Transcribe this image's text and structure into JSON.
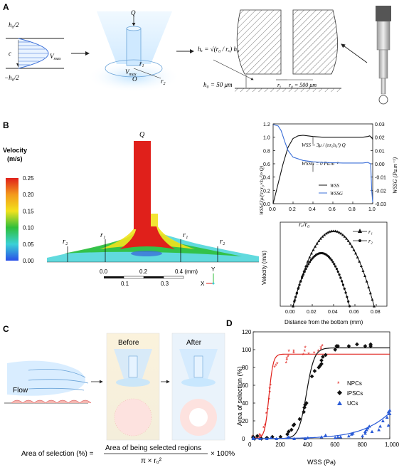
{
  "panels": {
    "a": "A",
    "b": "B",
    "c": "C",
    "d": "D"
  },
  "panel_a": {
    "profile": {
      "h0_half_top": "h₀/2",
      "h0_half_bot": "−h₀/2",
      "c": "c",
      "vmax": "V",
      "vmax_sub": "max"
    },
    "funnel": {
      "q": "Q",
      "r1": "r",
      "r1_sub": "1",
      "r2": "r",
      "r2_sub": "2",
      "vmax": "V",
      "vmax_sub": "max",
      "o": "O"
    },
    "geometry": {
      "hx_eq": "hₓ = √(r₀ / rₓ) h₀",
      "h0_eq": "h₀ = 50 μm",
      "rx": "rₓ",
      "r0_eq": "r₀ = 500 μm"
    }
  },
  "panel_b": {
    "legend": {
      "title_1": "Velocity",
      "title_2": "(m/s)",
      "ticks": [
        "0.25",
        "0.20",
        "0.15",
        "0.10",
        "0.05",
        "0.00"
      ]
    },
    "flow": {
      "q": "Q",
      "r2_left": "r₂",
      "r1_left": "r₁",
      "r1_right": "r₁",
      "r2_right": "r₂"
    },
    "scalebar": {
      "top_ticks": [
        "0.0",
        "0.2",
        "0.4 (mm)"
      ],
      "bottom_ticks": [
        "0.1",
        "0.3"
      ]
    },
    "axes_icon": {
      "x": "X",
      "y": "Y"
    }
  },
  "panel_c": {
    "before": "Before",
    "after": "After",
    "flow": "Flow",
    "formula": {
      "lhs": "Area of selection (%) =",
      "numer": "Area of being selected regions",
      "denom": "π × r₀²",
      "tail": "× 100%"
    }
  },
  "chart_data": [
    {
      "type": "line",
      "xlabel": "rₓ/r₀",
      "ylabel_left": "WSS/(3μ/(π×r₀×h₀²)×Q)",
      "ylabel_right": "WSSG (Pa.m⁻¹)",
      "xlim": [
        0,
        1
      ],
      "ylim_left": [
        0,
        1.2
      ],
      "ylim_right": [
        -0.03,
        0.03
      ],
      "x_ticks": [
        "0.0",
        "0.2",
        "0.4",
        "0.6",
        "0.8",
        "1.0"
      ],
      "y_left_ticks": [
        "0.0",
        "0.2",
        "0.4",
        "0.6",
        "0.8",
        "1.0",
        "1.2"
      ],
      "y_right_ticks": [
        "-0.03",
        "-0.02",
        "-0.01",
        "0.00",
        "0.01",
        "0.02",
        "0.03"
      ],
      "annotations": {
        "wss_eq": "WSS = 3μ / (πr₀h₀²) Q",
        "wssg_eq": "WSSG = 0 Pa.m⁻¹"
      },
      "series": [
        {
          "name": "WSS",
          "color": "#111111",
          "axis": "left",
          "x": [
            0,
            0.05,
            0.1,
            0.15,
            0.2,
            0.25,
            0.3,
            0.35,
            0.4,
            0.5,
            0.6,
            0.7,
            0.8,
            0.9,
            0.95,
            0.97,
            0.99,
            1.0
          ],
          "y": [
            0.0,
            0.3,
            0.6,
            0.85,
            0.98,
            1.02,
            1.03,
            1.02,
            1.01,
            1.0,
            1.0,
            1.0,
            1.0,
            1.0,
            1.01,
            1.02,
            0.99,
            0.97
          ]
        },
        {
          "name": "WSSG",
          "color": "#3b6fd8",
          "axis": "right",
          "x": [
            0,
            0.05,
            0.08,
            0.12,
            0.15,
            0.2,
            0.3,
            0.4,
            0.5,
            0.6,
            0.7,
            0.8,
            0.9,
            0.95,
            0.98,
            0.99,
            1.0
          ],
          "y": [
            0.0295,
            0.0285,
            0.025,
            0.016,
            0.01,
            0.005,
            0.0025,
            0.0015,
            0.001,
            0.0008,
            0.0006,
            0.0006,
            0.0006,
            0.001,
            0.0,
            -0.02,
            -0.029
          ]
        }
      ]
    },
    {
      "type": "line",
      "xlabel": "Distance from the bottom (mm)",
      "ylabel": "Velocity (m/s)",
      "xlim": [
        -0.01,
        0.09
      ],
      "ylim": [
        0,
        0.22
      ],
      "x_ticks": [
        "0.00",
        "0.02",
        "0.04",
        "0.06",
        "0.08"
      ],
      "series": [
        {
          "name": "r₁",
          "marker": "triangle",
          "peak_x": 0.04,
          "peak_y": 0.197,
          "x_start": 0.002,
          "x_end": 0.078
        },
        {
          "name": "r₂",
          "marker": "circle",
          "peak_x": 0.0285,
          "peak_y": 0.139,
          "x_start": 0.002,
          "x_end": 0.055
        }
      ]
    },
    {
      "type": "scatter",
      "xlabel": "WSS (Pa)",
      "ylabel": "Area of selection (%)",
      "xlim": [
        0,
        1000
      ],
      "ylim": [
        0,
        120
      ],
      "x_ticks": [
        "0",
        "200",
        "400",
        "600",
        "800",
        "1,000"
      ],
      "y_ticks": [
        "0",
        "20",
        "40",
        "60",
        "80",
        "100",
        "120"
      ],
      "series": [
        {
          "name": "NPCs",
          "color": "#e0201b",
          "marker": "star",
          "points": [
            [
              0,
              0
            ],
            [
              0,
              1
            ],
            [
              0,
              2
            ],
            [
              30,
              0
            ],
            [
              30,
              1
            ],
            [
              50,
              2
            ],
            [
              50,
              4
            ],
            [
              60,
              0
            ],
            [
              60,
              3
            ],
            [
              80,
              12
            ],
            [
              90,
              15
            ],
            [
              100,
              28
            ],
            [
              110,
              33
            ],
            [
              120,
              44
            ],
            [
              125,
              52
            ],
            [
              125,
              56
            ],
            [
              130,
              60
            ],
            [
              160,
              80
            ],
            [
              170,
              82
            ],
            [
              180,
              84
            ],
            [
              245,
              85
            ],
            [
              250,
              88
            ],
            [
              250,
              90
            ],
            [
              260,
              92
            ],
            [
              265,
              98
            ],
            [
              300,
              96
            ],
            [
              300,
              98
            ],
            [
              370,
              94
            ],
            [
              380,
              98
            ],
            [
              385,
              102
            ],
            [
              410,
              95
            ],
            [
              450,
              96
            ],
            [
              480,
              98
            ],
            [
              500,
              100
            ],
            [
              500,
              102
            ],
            [
              510,
              104
            ]
          ],
          "fit": {
            "ymin": 0,
            "ymax": 95,
            "x0": 115,
            "k": 0.065
          }
        },
        {
          "name": "iPSCs",
          "color": "#111111",
          "marker": "diamond",
          "points": [
            [
              0,
              1
            ],
            [
              0,
              2
            ],
            [
              10,
              0
            ],
            [
              30,
              3
            ],
            [
              60,
              0
            ],
            [
              100,
              1
            ],
            [
              140,
              2
            ],
            [
              200,
              2
            ],
            [
              250,
              5
            ],
            [
              260,
              8
            ],
            [
              280,
              10
            ],
            [
              295,
              15
            ],
            [
              300,
              16
            ],
            [
              340,
              22
            ],
            [
              370,
              30
            ],
            [
              375,
              35
            ],
            [
              380,
              38
            ],
            [
              390,
              40
            ],
            [
              430,
              70
            ],
            [
              450,
              76
            ],
            [
              480,
              80
            ],
            [
              490,
              82
            ],
            [
              500,
              84
            ],
            [
              500,
              88
            ],
            [
              510,
              92
            ],
            [
              530,
              94
            ],
            [
              600,
              100
            ],
            [
              610,
              104
            ],
            [
              620,
              104
            ],
            [
              700,
              104
            ],
            [
              760,
              106
            ],
            [
              820,
              104
            ],
            [
              860,
              104
            ],
            [
              860,
              106
            ]
          ],
          "fit": {
            "ymin": 0,
            "ymax": 102,
            "x0": 390,
            "k": 0.035
          }
        },
        {
          "name": "UCs",
          "color": "#2a5bd7",
          "marker": "triangle",
          "points": [
            [
              0,
              0
            ],
            [
              0,
              1
            ],
            [
              50,
              0
            ],
            [
              100,
              0
            ],
            [
              130,
              1
            ],
            [
              170,
              0
            ],
            [
              250,
              1
            ],
            [
              260,
              2
            ],
            [
              300,
              0
            ],
            [
              380,
              0
            ],
            [
              400,
              1
            ],
            [
              500,
              2
            ],
            [
              530,
              4
            ],
            [
              600,
              1
            ],
            [
              620,
              2
            ],
            [
              640,
              2
            ],
            [
              700,
              3
            ],
            [
              720,
              5
            ],
            [
              730,
              6
            ],
            [
              800,
              3
            ],
            [
              820,
              6
            ],
            [
              820,
              8
            ],
            [
              830,
              10
            ],
            [
              840,
              12
            ],
            [
              850,
              14
            ],
            [
              870,
              8
            ],
            [
              920,
              10
            ],
            [
              930,
              14
            ],
            [
              950,
              20
            ],
            [
              980,
              24
            ],
            [
              990,
              30
            ],
            [
              1000,
              32
            ],
            [
              1000,
              28
            ],
            [
              990,
              15
            ]
          ],
          "fit": {
            "ymin": 0,
            "ymax": 160,
            "x0": 1250,
            "k": 0.006
          }
        }
      ]
    }
  ]
}
